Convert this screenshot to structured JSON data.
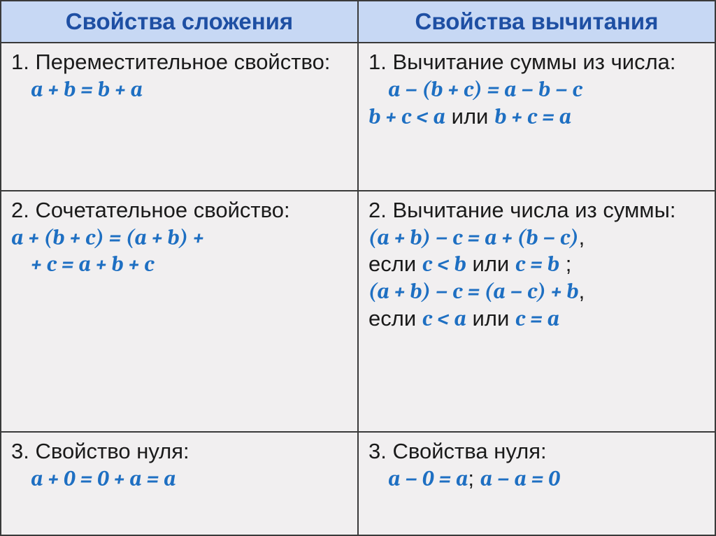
{
  "headers": {
    "left": "Свойства сложения",
    "right": "Свойства вычитания"
  },
  "rows": [
    {
      "left": {
        "num": "1.",
        "title": "Переместительное свойство:",
        "f1": "a + b = b + a"
      },
      "right": {
        "num": "1.",
        "title": "Вычитание суммы из числа:",
        "f1": "a  −  (b + c) = a  −  b − c",
        "f2a": "b + c < a",
        "or": " или ",
        "f2b": "b + c = a"
      }
    },
    {
      "left": {
        "num": "2.",
        "title": "Сочетательное свойство:",
        "f1": "a + (b + c) = (a + b) +",
        "f2": "+ c = a + b + c"
      },
      "right": {
        "num": "2.",
        "title": "Вычитание числа из суммы:",
        "f1": "(a + b) − c = a + (b − c)",
        "comma1": ",",
        "if1": "если ",
        "c1a": "c < b",
        "or1": " или ",
        "c1b": "c = b",
        "semi1": " ;",
        "f2": "(a + b) − c = (a  −  c) + b",
        "comma2": ",",
        "if2": "если ",
        "c2a": "c < a",
        "or2": " или ",
        "c2b": "c = a"
      }
    },
    {
      "left": {
        "num": "3.",
        "title": "Свойство нуля:",
        "f1": "a + 0 = 0 + a = a"
      },
      "right": {
        "num": "3.",
        "title": "Свойства нуля:",
        "f1": "a − 0 = a",
        "sep": "; ",
        "f2": "a − a = 0"
      }
    }
  ],
  "style": {
    "header_bg": "#c7d8f4",
    "header_color": "#1e4fa3",
    "cell_bg": "#f1eff0",
    "formula_color": "#1e6fc2",
    "text_color": "#1a1a1a",
    "border_color": "#3a3a3a",
    "header_fontsize": 33,
    "body_fontsize": 31
  }
}
